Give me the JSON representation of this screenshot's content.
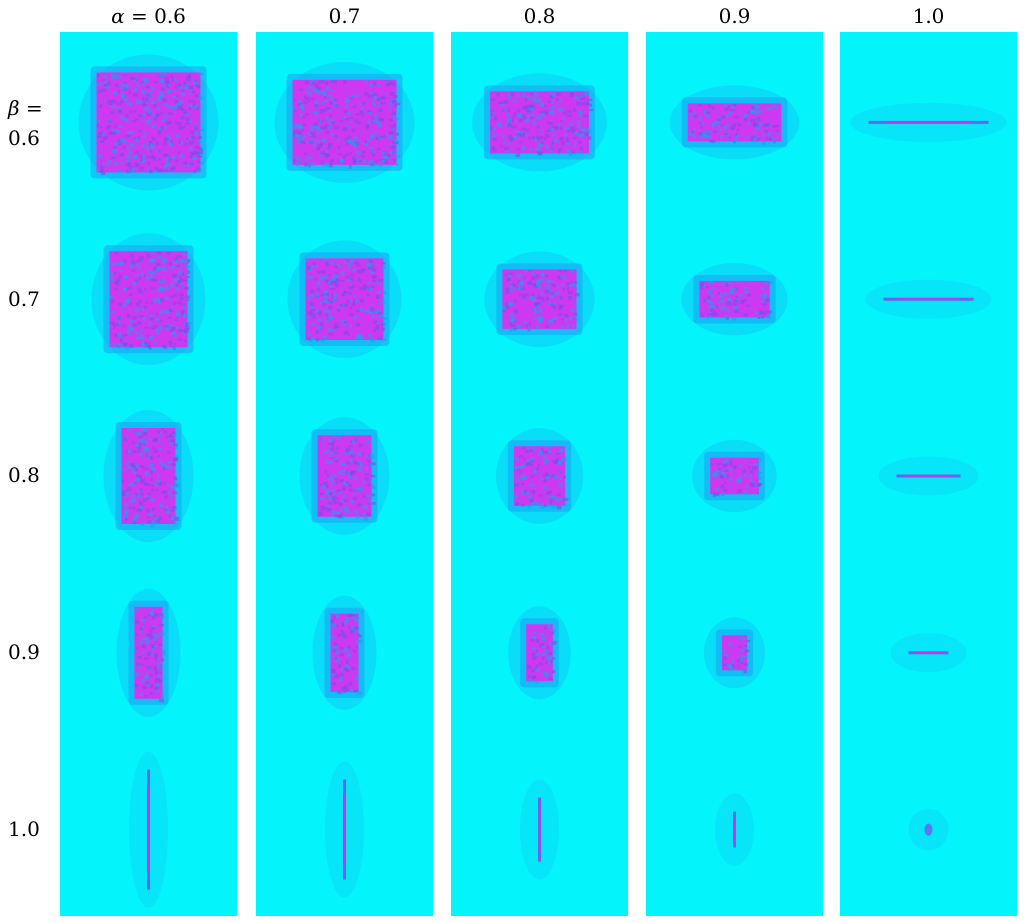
{
  "column_headers": [
    {
      "prefix": "α",
      "eq": " = ",
      "value": "0.6"
    },
    {
      "prefix": "",
      "eq": "",
      "value": "0.7"
    },
    {
      "prefix": "",
      "eq": "",
      "value": "0.8"
    },
    {
      "prefix": "",
      "eq": "",
      "value": "0.9"
    },
    {
      "prefix": "",
      "eq": "",
      "value": "1.0"
    }
  ],
  "row_headers": [
    {
      "prefix": "β",
      "eq": " =",
      "value": "0.6"
    },
    {
      "prefix": "",
      "eq": "",
      "value": "0.7"
    },
    {
      "prefix": "",
      "eq": "",
      "value": "0.8"
    },
    {
      "prefix": "",
      "eq": "",
      "value": "0.9"
    },
    {
      "prefix": "",
      "eq": "",
      "value": "1.0"
    }
  ],
  "colors": {
    "background": "#03f4fb",
    "halo": "#1aa0f0",
    "core": "#ee22ee",
    "core_speckle": "#7a4cf0"
  },
  "grid": {
    "alpha_values": [
      0.6,
      0.7,
      0.8,
      0.9,
      1.0
    ],
    "beta_values": [
      0.6,
      0.7,
      0.8,
      0.9,
      1.0
    ]
  }
}
